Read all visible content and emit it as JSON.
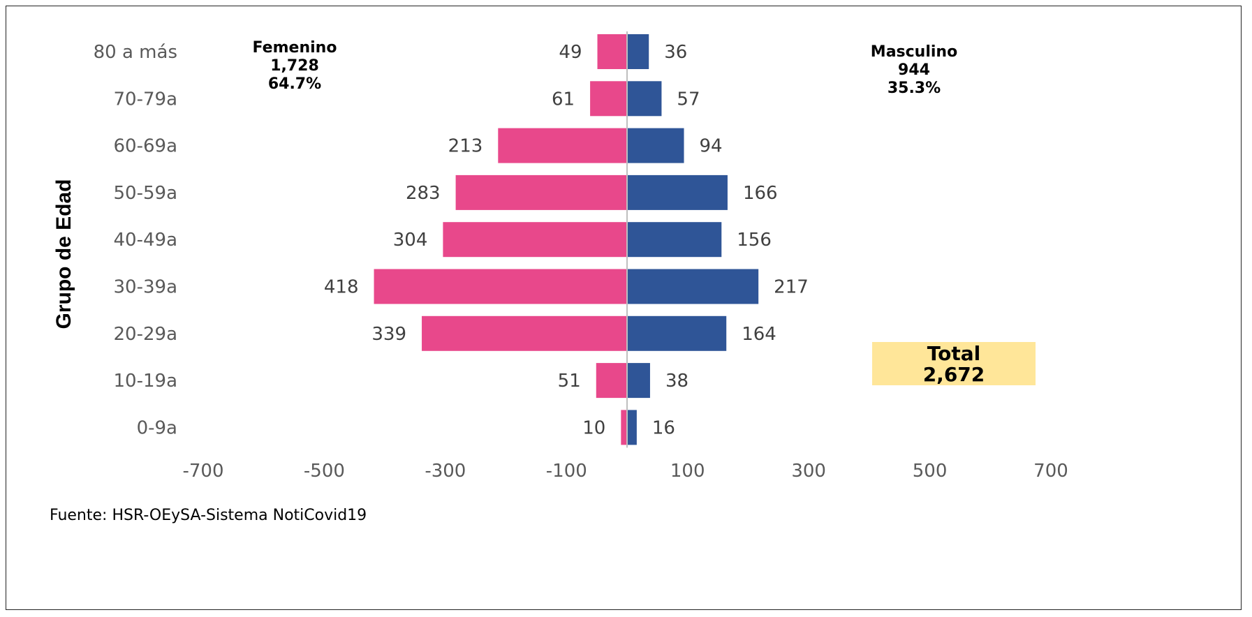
{
  "chart_data": {
    "type": "bar",
    "orientation": "horizontal-pyramid",
    "ylabel": "Grupo de Edad",
    "categories": [
      "80 a más",
      "70-79a",
      "60-69a",
      "50-59a",
      "40-49a",
      "30-39a",
      "20-29a",
      "10-19a",
      "0-9a"
    ],
    "series": [
      {
        "name": "Femenino",
        "values": [
          49,
          61,
          213,
          283,
          304,
          418,
          339,
          51,
          10
        ],
        "color": "#E8488B"
      },
      {
        "name": "Masculino",
        "values": [
          36,
          57,
          94,
          166,
          156,
          217,
          164,
          38,
          16
        ],
        "color": "#2F5597"
      }
    ],
    "xlim": [
      -700,
      700
    ],
    "xticks": [
      -700,
      -500,
      -300,
      -100,
      100,
      300,
      500,
      700
    ],
    "grid": false
  },
  "annotations": {
    "femenino": {
      "name": "Femenino",
      "count": "1,728",
      "percent": "64.7%"
    },
    "masculino": {
      "name": "Masculino",
      "count": "944",
      "percent": "35.3%"
    },
    "total": {
      "label": "Total",
      "value": "2,672",
      "color": "#FFE699"
    }
  },
  "source": "Fuente: HSR-OEySA-Sistema NotiCovid19"
}
